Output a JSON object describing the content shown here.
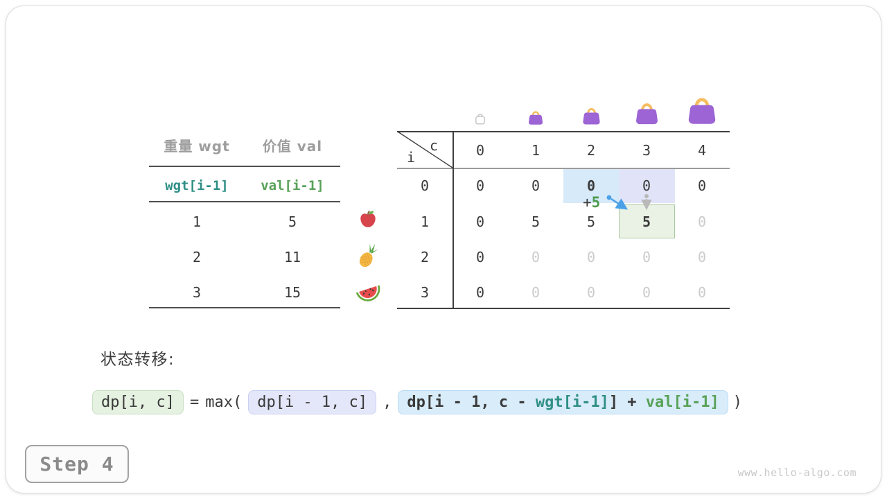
{
  "items_table": {
    "headers": [
      "重量 wgt",
      "价值 val"
    ],
    "var_row": [
      "wgt[i-1]",
      "val[i-1]"
    ],
    "rows": [
      {
        "wgt": "1",
        "val": "5",
        "fruit": "apple-icon"
      },
      {
        "wgt": "2",
        "val": "11",
        "fruit": "pineapple-icon"
      },
      {
        "wgt": "3",
        "val": "15",
        "fruit": "watermelon-icon"
      }
    ]
  },
  "dp_table": {
    "corner": {
      "row_var": "i",
      "col_var": "c"
    },
    "col_headers": [
      "0",
      "1",
      "2",
      "3",
      "4"
    ],
    "row_headers": [
      "0",
      "1",
      "2",
      "3"
    ],
    "bags": [
      "bag-outline-icon",
      "bag-icon",
      "bag-icon",
      "bag-icon",
      "bag-icon"
    ],
    "cells": [
      [
        "0",
        "0",
        "0",
        "0",
        "0"
      ],
      [
        "0",
        "5",
        "5",
        "5",
        "0"
      ],
      [
        "0",
        "0",
        "0",
        "0",
        "0"
      ],
      [
        "0",
        "0",
        "0",
        "0",
        "0"
      ]
    ],
    "cell_styles": [
      [
        "dark",
        "dark",
        "dark-bold",
        "dark",
        "dark"
      ],
      [
        "dark",
        "dark",
        "dark",
        "dark-bold",
        "gray"
      ],
      [
        "dark",
        "gray",
        "gray",
        "gray",
        "gray"
      ],
      [
        "dark",
        "gray",
        "gray",
        "gray",
        "gray"
      ]
    ],
    "highlights": {
      "source_take": {
        "i": 0,
        "c": 2,
        "color": "#d7eafa"
      },
      "source_skip": {
        "i": 0,
        "c": 3,
        "color": "#e1e4f8"
      },
      "target": {
        "i": 1,
        "c": 3,
        "color": "#e9f2e5"
      }
    },
    "annotation": {
      "plus": "+",
      "value": "5"
    }
  },
  "transition": {
    "label": "状态转移:",
    "formula": {
      "lhs": "dp[i, c]",
      "equals": "=",
      "max_open": "max(",
      "arg1": "dp[i - 1, c]",
      "comma": ",",
      "arg2_parts": [
        {
          "text": "dp[i - 1, c - ",
          "color": "dark"
        },
        {
          "text": "wgt[i-1]",
          "color": "teal"
        },
        {
          "text": "] + ",
          "color": "dark"
        },
        {
          "text": "val[i-1]",
          "color": "green"
        }
      ],
      "close": ")"
    }
  },
  "step_label": "Step 4",
  "watermark": "www.hello-algo.com",
  "colors": {
    "accent_teal": "#2f8f85",
    "accent_green": "#58a158",
    "highlight_blue": "#d7eafa",
    "highlight_lavender": "#e1e4f8",
    "highlight_green_bg": "#e9f2e5",
    "highlight_green_border": "#a9cba1",
    "bag_purple": "#9c64d4",
    "bag_handle": "#f6bd60",
    "arrow_blue": "#4aa1e8",
    "arrow_gray": "#b9b9b9",
    "muted_text": "#9e9e9e",
    "future_cell": "#cbcbcb"
  }
}
